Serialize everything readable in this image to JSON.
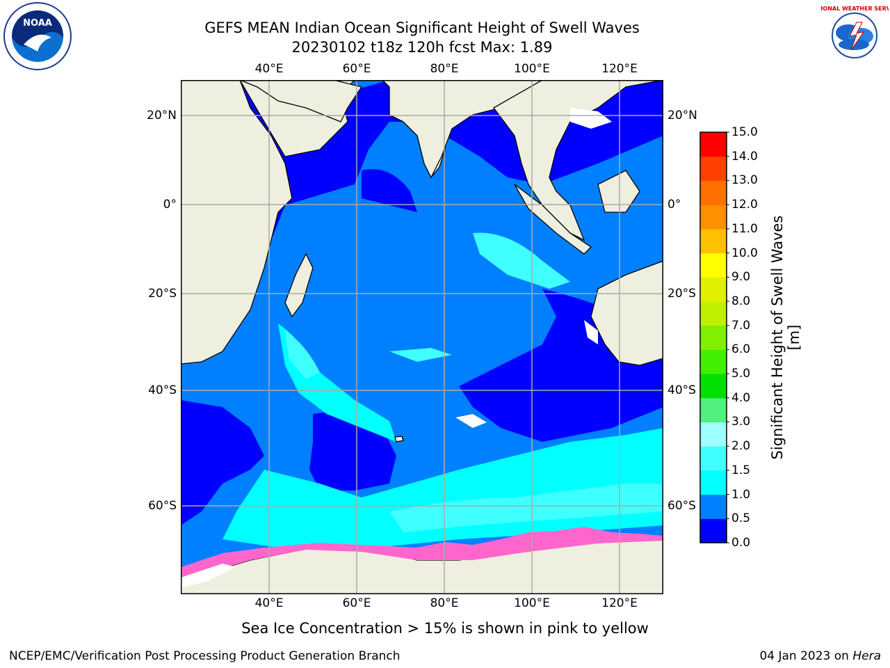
{
  "title": {
    "line1": "GEFS MEAN Indian Ocean Significant Height of Swell Waves",
    "line2": "20230102 t18z 120h fcst   Max: 1.89"
  },
  "logos": {
    "left": {
      "name": "noaa-logo",
      "text": "NOAA"
    },
    "right": {
      "name": "national-weather-service-logo",
      "text": "NATIONAL WEATHER SERVICE"
    }
  },
  "axes": {
    "lon_labels": [
      "40°E",
      "60°E",
      "80°E",
      "100°E",
      "120°E"
    ],
    "lat_labels_left": [
      "20°N",
      "0°",
      "20°S",
      "40°S",
      "60°S"
    ],
    "lat_labels_right": [
      "20°N",
      "0°",
      "20°S",
      "40°S",
      "60°S"
    ],
    "lon_range": [
      20,
      130
    ],
    "lat_range": [
      -70,
      28
    ],
    "grid": true
  },
  "colorbar": {
    "label": "Significant Height of Swell Waves [m]",
    "ticks": [
      "0.0",
      "0.5",
      "1.0",
      "1.5",
      "2.0",
      "3.0",
      "4.0",
      "5.0",
      "6.0",
      "7.0",
      "8.0",
      "9.0",
      "10.0",
      "11.0",
      "12.0",
      "13.0",
      "14.0",
      "15.0"
    ],
    "colors": [
      "#0000ff",
      "#0080ff",
      "#00ffff",
      "#40ffff",
      "#a0ffff",
      "#50f080",
      "#00e000",
      "#40f000",
      "#80f000",
      "#c0f000",
      "#e0f000",
      "#ffff00",
      "#ffc000",
      "#ff9000",
      "#ff7000",
      "#ff4000",
      "#ff0000"
    ]
  },
  "colors": {
    "land": "#efefdf",
    "sea_ice": "#ff66cc"
  },
  "note": "Sea Ice Concentration > 15% is shown in pink to yellow",
  "footer": {
    "left": "NCEP/EMC/Verification Post Processing Product Generation Branch",
    "right_date": "04 Jan 2023 on ",
    "right_machine": "Hera"
  }
}
